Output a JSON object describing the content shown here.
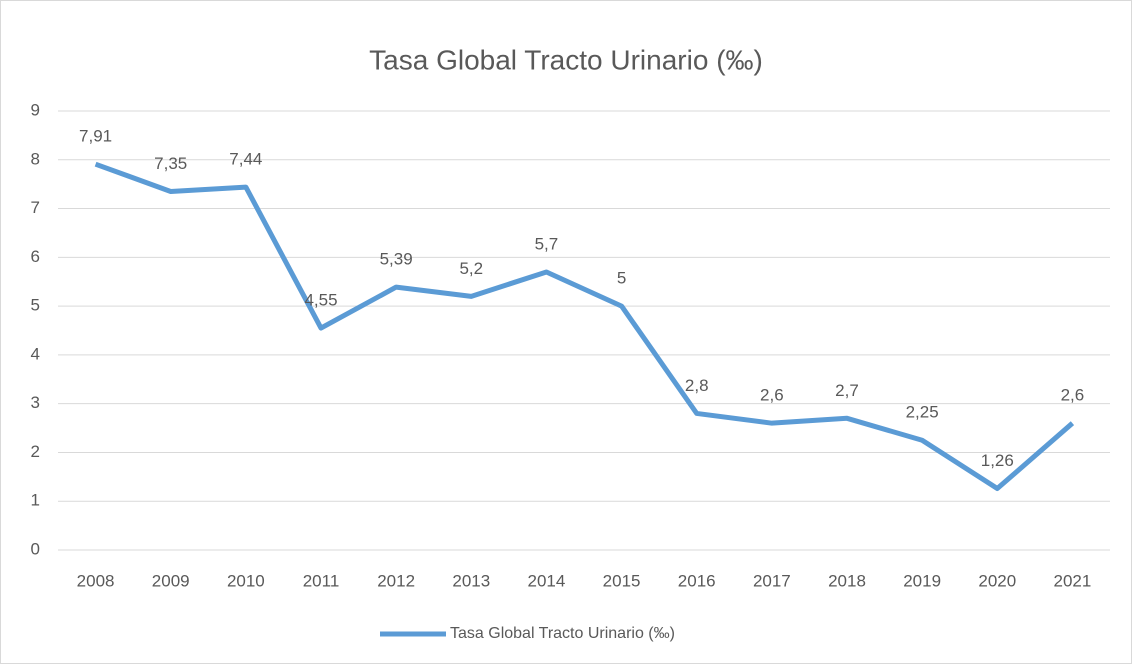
{
  "chart_data": {
    "type": "line",
    "title": "Tasa Global Tracto Urinario (‰)",
    "categories": [
      "2008",
      "2009",
      "2010",
      "2011",
      "2012",
      "2013",
      "2014",
      "2015",
      "2016",
      "2017",
      "2018",
      "2019",
      "2020",
      "2021"
    ],
    "series": [
      {
        "name": "Tasa Global Tracto Urinario (‰)",
        "color": "#5b9bd5",
        "values": [
          7.91,
          7.35,
          7.44,
          4.55,
          5.39,
          5.2,
          5.7,
          5,
          2.8,
          2.6,
          2.7,
          2.25,
          1.26,
          2.6
        ],
        "value_labels": [
          "7,91",
          "7,35",
          "7,44",
          "4,55",
          "5,39",
          "5,2",
          "5,7",
          "5",
          "2,8",
          "2,6",
          "2,7",
          "2,25",
          "1,26",
          "2,6"
        ]
      }
    ],
    "ylim": [
      0,
      9
    ],
    "yticks": [
      0,
      1,
      2,
      3,
      4,
      5,
      6,
      7,
      8,
      9
    ],
    "grid": true,
    "legend": "bottom"
  }
}
